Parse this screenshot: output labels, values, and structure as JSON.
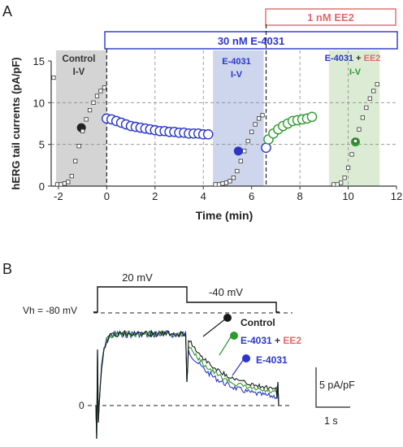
{
  "panel_a": {
    "label": "A",
    "ylabel": "hERG tail currents (pA/pF)",
    "xlabel": "Time (min)",
    "drug_bar": "30 nM E-4031",
    "ee2_bar": "1 nM EE2",
    "region_control": [
      "Control",
      "I-V"
    ],
    "region_e4031": [
      "E-4031",
      "I-V"
    ],
    "region_combo": {
      "drug": "E-4031",
      "plus": " + ",
      "ee2": "EE2",
      "line2": "I-V"
    },
    "colors": {
      "control": "#222222",
      "e4031": "#2a36c8",
      "ee2": "#e06a6a",
      "combo": "#2e9a2e",
      "shade_control": "#d4d4d4",
      "shade_e4031": "#cdd6ec",
      "shade_combo": "#dcecd4"
    }
  },
  "panel_b": {
    "label": "B",
    "protocol_v1": "20 mV",
    "protocol_v2": "-40 mV",
    "holding": "Vh = -80 mV",
    "zero": "0",
    "legend_control": "Control",
    "legend_combo_drug": "E-4031",
    "legend_combo_plus": " + ",
    "legend_combo_ee2": "EE2",
    "legend_e4031": "E-4031",
    "scale_y": "5 pA/pF",
    "scale_x": "1 s"
  },
  "chart_data": [
    {
      "type": "scatter",
      "xlabel": "Time (min)",
      "ylabel": "hERG tail currents (pA/pF)",
      "xlim": [
        -2.3,
        12
      ],
      "ylim": [
        0,
        15
      ],
      "xticks": [
        -2,
        0,
        2,
        4,
        6,
        8,
        10,
        12
      ],
      "yticks": [
        0,
        5,
        10,
        15
      ],
      "grid": true,
      "series": [
        {
          "name": "Control",
          "color": "#222222",
          "x": [
            -1.05
          ],
          "y": [
            7.0
          ]
        },
        {
          "name": "E-4031",
          "color": "#2a36c8",
          "x": [
            5.45
          ],
          "y": [
            4.2
          ]
        },
        {
          "name": "E-4031 + EE2",
          "color": "#2e9a2e",
          "x": [
            10.3
          ],
          "y": [
            5.3
          ]
        },
        {
          "name": "30 nM E-4031 time course",
          "color": "#2a36c8",
          "x": [
            0,
            0.2,
            0.4,
            0.6,
            0.8,
            1.0,
            1.2,
            1.4,
            1.6,
            1.8,
            2.0,
            2.2,
            2.4,
            2.6,
            2.8,
            3.0,
            3.2,
            3.4,
            3.6,
            3.8,
            4.0,
            4.2,
            6.6
          ],
          "y": [
            8.1,
            8.0,
            7.8,
            7.6,
            7.4,
            7.2,
            7.1,
            7.0,
            6.9,
            6.8,
            6.7,
            6.6,
            6.6,
            6.5,
            6.5,
            6.4,
            6.4,
            6.3,
            6.3,
            6.3,
            6.2,
            6.2,
            4.6
          ]
        },
        {
          "name": "EE2 time course",
          "color": "#2e9a2e",
          "x": [
            6.7,
            6.9,
            7.1,
            7.3,
            7.5,
            7.7,
            7.9,
            8.1,
            8.3,
            8.5
          ],
          "y": [
            5.6,
            6.3,
            6.8,
            7.2,
            7.5,
            7.8,
            7.9,
            8.0,
            8.1,
            8.3
          ]
        },
        {
          "name": "Control I-V",
          "color": "#222222",
          "x": [
            -2.2,
            -2.05,
            -1.9,
            -1.75,
            -1.6,
            -1.45,
            -1.3,
            -1.15,
            -1.0,
            -0.85,
            -0.7,
            -0.55,
            -0.4,
            -0.25,
            -0.1
          ],
          "y": [
            13.0,
            0.2,
            0.2,
            0.3,
            0.5,
            1.2,
            3.0,
            4.8,
            6.6,
            8.0,
            9.1,
            10.0,
            10.8,
            11.4,
            11.8
          ]
        },
        {
          "name": "E-4031 I-V",
          "color": "#222222",
          "x": [
            4.5,
            4.65,
            4.8,
            4.95,
            5.1,
            5.25,
            5.4,
            5.55,
            5.7,
            5.85,
            6.0,
            6.15,
            6.3,
            6.45
          ],
          "y": [
            0.2,
            0.2,
            0.3,
            0.4,
            0.6,
            1.0,
            1.8,
            3.0,
            4.2,
            5.4,
            6.5,
            7.4,
            8.1,
            8.5
          ]
        },
        {
          "name": "E-4031 + EE2 I-V",
          "color": "#222222",
          "x": [
            9.4,
            9.55,
            9.7,
            9.85,
            10.0,
            10.15,
            10.3,
            10.45,
            10.6,
            10.75,
            10.9,
            11.05,
            11.2
          ],
          "y": [
            0.2,
            0.2,
            0.4,
            1.0,
            2.2,
            3.8,
            5.4,
            6.8,
            8.2,
            9.4,
            10.5,
            11.4,
            12.2
          ]
        }
      ]
    },
    {
      "type": "line",
      "title": "",
      "xlabel": "",
      "ylabel": "",
      "series": [
        {
          "name": "Control",
          "color": "#1a1a1a"
        },
        {
          "name": "E-4031 + EE2",
          "color": "#2e9a2e"
        },
        {
          "name": "E-4031",
          "color": "#2a36c8"
        }
      ]
    }
  ]
}
